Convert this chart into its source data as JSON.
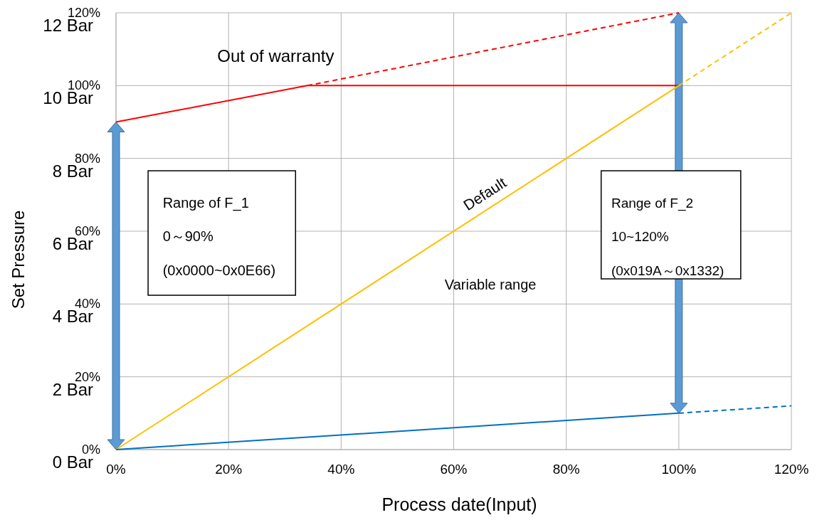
{
  "chart_data": {
    "type": "line",
    "xlabel": "Process date(Input)",
    "ylabel": "Set Pressure",
    "xlim": [
      0,
      120
    ],
    "ylim": [
      0,
      12
    ],
    "xticks": [
      {
        "value": 0,
        "label": "0%"
      },
      {
        "value": 20,
        "label": "20%"
      },
      {
        "value": 40,
        "label": "40%"
      },
      {
        "value": 60,
        "label": "60%"
      },
      {
        "value": 80,
        "label": "80%"
      },
      {
        "value": 100,
        "label": "100%"
      },
      {
        "value": 120,
        "label": "120%"
      }
    ],
    "yticks": [
      {
        "value": 0,
        "label": "0 Bar"
      },
      {
        "value": 2,
        "label": "2 Bar"
      },
      {
        "value": 4,
        "label": "4 Bar"
      },
      {
        "value": 6,
        "label": "6 Bar"
      },
      {
        "value": 8,
        "label": "8 Bar"
      },
      {
        "value": 10,
        "label": "10 Bar"
      },
      {
        "value": 12,
        "label": "12 Bar"
      }
    ],
    "y2lim": [
      0,
      120
    ],
    "y2ticks": [
      {
        "value": 0,
        "label": "0%"
      },
      {
        "value": 20,
        "label": "20%"
      },
      {
        "value": 40,
        "label": "40%"
      },
      {
        "value": 60,
        "label": "60%"
      },
      {
        "value": 80,
        "label": "80%"
      },
      {
        "value": 100,
        "label": "100%"
      },
      {
        "value": 120,
        "label": "120%"
      }
    ],
    "grid": true,
    "series": [
      {
        "axis": "y2",
        "color": "#ff0000",
        "line_style": "solid",
        "x": [
          0,
          34,
          100
        ],
        "values": [
          90,
          100,
          100
        ]
      },
      {
        "axis": "y2",
        "color": "#ff0000",
        "line_style": "dashed",
        "x": [
          34,
          100
        ],
        "values": [
          100,
          120
        ]
      },
      {
        "axis": "y2",
        "color": "#ffc000",
        "line_style": "solid",
        "x": [
          0,
          100
        ],
        "values": [
          0,
          100
        ]
      },
      {
        "axis": "y2",
        "color": "#ffc000",
        "line_style": "dashed",
        "x": [
          100,
          120
        ],
        "values": [
          100,
          120
        ]
      },
      {
        "axis": "y2",
        "color": "#0070c0",
        "line_style": "solid",
        "x": [
          0,
          100
        ],
        "values": [
          0,
          10
        ]
      },
      {
        "axis": "y2",
        "color": "#0070c0",
        "line_style": "dashed",
        "x": [
          100,
          120
        ],
        "values": [
          10,
          12
        ]
      }
    ],
    "annotations": [
      "Out of warranty",
      "Range of F_1",
      "0～90%",
      "(0x0000~0x0E66)",
      "Range of F_2",
      "10~120%",
      "(0x019A～0x1332)",
      "Variable range",
      "Default"
    ]
  }
}
